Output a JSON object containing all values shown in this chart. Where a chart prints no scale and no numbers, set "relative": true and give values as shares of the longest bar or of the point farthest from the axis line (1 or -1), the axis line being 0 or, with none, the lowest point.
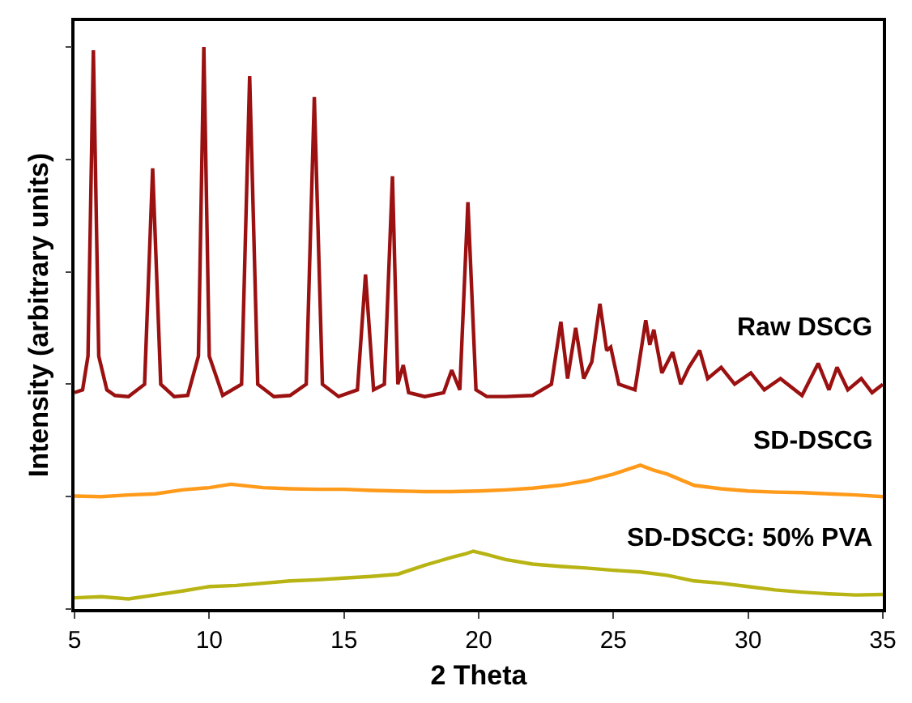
{
  "chart_data": {
    "type": "line",
    "relative": true,
    "xlabel": "2 Theta",
    "ylabel": "Intensity (arbitrary units)",
    "xlim": [
      5,
      35
    ],
    "xticks": [
      5,
      10,
      15,
      20,
      25,
      30,
      35
    ],
    "tick_labels": "x",
    "legend": false,
    "marker": "none",
    "line_style": "solid",
    "series": [
      {
        "name": "Raw DSCG",
        "color": "#9b1010",
        "x": [
          5,
          5.3,
          5.5,
          5.7,
          5.9,
          6.2,
          6.5,
          7,
          7.6,
          7.9,
          8.2,
          8.7,
          9.2,
          9.6,
          9.8,
          10.0,
          10.5,
          11.2,
          11.5,
          11.8,
          12.4,
          13,
          13.6,
          13.9,
          14.2,
          14.8,
          15.5,
          15.8,
          16.1,
          16.5,
          16.8,
          17.0,
          17.2,
          17.4,
          18,
          18.7,
          19.0,
          19.3,
          19.6,
          19.9,
          20.3,
          21,
          22,
          22.7,
          23.05,
          23.3,
          23.6,
          23.9,
          24.2,
          24.5,
          24.75,
          24.9,
          25.2,
          25.8,
          26.2,
          26.35,
          26.5,
          26.8,
          27.2,
          27.5,
          27.8,
          28.2,
          28.5,
          29,
          29.5,
          30.1,
          30.6,
          31.2,
          32,
          32.6,
          33,
          33.3,
          33.7,
          34.2,
          34.6,
          35
        ],
        "values": [
          0.385,
          0.39,
          0.45,
          0.994,
          0.45,
          0.39,
          0.38,
          0.378,
          0.4,
          0.784,
          0.4,
          0.378,
          0.38,
          0.45,
          1.0,
          0.45,
          0.38,
          0.4,
          0.948,
          0.4,
          0.378,
          0.38,
          0.4,
          0.911,
          0.4,
          0.378,
          0.39,
          0.595,
          0.39,
          0.4,
          0.77,
          0.4,
          0.434,
          0.385,
          0.378,
          0.385,
          0.425,
          0.39,
          0.724,
          0.39,
          0.378,
          0.378,
          0.38,
          0.4,
          0.511,
          0.41,
          0.5,
          0.41,
          0.44,
          0.543,
          0.46,
          0.466,
          0.4,
          0.39,
          0.514,
          0.47,
          0.497,
          0.42,
          0.457,
          0.4,
          0.43,
          0.46,
          0.41,
          0.43,
          0.4,
          0.42,
          0.39,
          0.41,
          0.38,
          0.437,
          0.39,
          0.43,
          0.39,
          0.41,
          0.385,
          0.4
        ]
      },
      {
        "name": "SD-DSCG",
        "color": "#ff9a1a",
        "x": [
          5,
          6,
          7,
          8,
          9,
          10,
          10.8,
          12,
          13,
          14,
          15,
          16,
          17,
          18,
          19,
          20,
          21,
          22,
          23,
          24,
          25,
          25.5,
          26,
          26.5,
          27,
          27.5,
          28,
          29,
          30,
          31,
          32,
          33,
          34,
          35
        ],
        "values": [
          0.201,
          0.2,
          0.203,
          0.205,
          0.212,
          0.216,
          0.222,
          0.216,
          0.214,
          0.213,
          0.213,
          0.211,
          0.21,
          0.209,
          0.209,
          0.21,
          0.212,
          0.215,
          0.22,
          0.228,
          0.24,
          0.248,
          0.256,
          0.247,
          0.24,
          0.23,
          0.22,
          0.214,
          0.21,
          0.208,
          0.207,
          0.205,
          0.203,
          0.2
        ]
      },
      {
        "name": "SD-DSCG: 50% PVA",
        "color": "#b8b414",
        "x": [
          5,
          6,
          7,
          8,
          9,
          10,
          11,
          12,
          13,
          14,
          15,
          16,
          17,
          18,
          18.5,
          19,
          19.5,
          19.8,
          20.3,
          21,
          22,
          23,
          24,
          25,
          26,
          27,
          28,
          29,
          30,
          31,
          32,
          33,
          34,
          35
        ],
        "values": [
          0.02,
          0.022,
          0.018,
          0.025,
          0.032,
          0.04,
          0.042,
          0.046,
          0.05,
          0.052,
          0.055,
          0.058,
          0.062,
          0.078,
          0.085,
          0.092,
          0.098,
          0.103,
          0.097,
          0.088,
          0.08,
          0.076,
          0.073,
          0.069,
          0.066,
          0.06,
          0.05,
          0.046,
          0.04,
          0.034,
          0.03,
          0.027,
          0.025,
          0.026
        ]
      }
    ]
  }
}
